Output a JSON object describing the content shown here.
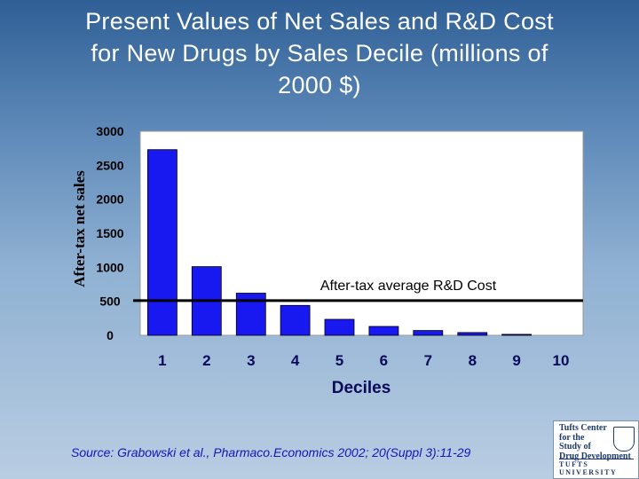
{
  "title_lines": [
    "Present Values of Net Sales and R&D Cost",
    "for New Drugs by Sales Decile (millions of",
    "2000 $)"
  ],
  "source": "Source: Grabowski et al., Pharmaco.Economics 2002; 20(Suppl 3):11-29",
  "logo": {
    "lines": [
      "Tufts Center",
      "for the",
      "Study of",
      "Drug Development"
    ],
    "university": "TUFTS UNIVERSITY"
  },
  "colors": {
    "bar": "#1818f0",
    "plot_bg": "#ffffff",
    "reference_line": "#000000",
    "y_tick_text": "#000000",
    "x_tick_text": "#0a0a5a"
  },
  "chart_data": {
    "type": "bar",
    "categories": [
      "1",
      "2",
      "3",
      "4",
      "5",
      "6",
      "7",
      "8",
      "9",
      "10"
    ],
    "values": [
      2730,
      1010,
      620,
      440,
      235,
      130,
      70,
      40,
      15,
      0
    ],
    "xlabel": "Deciles",
    "ylabel": "After-tax net sales",
    "ylim": [
      0,
      3000
    ],
    "yticks": [
      0,
      500,
      1000,
      1500,
      2000,
      2500,
      3000
    ],
    "grid": false,
    "annotations": [
      {
        "type": "hline",
        "y": 510,
        "label": "After-tax average R&D Cost"
      }
    ]
  }
}
